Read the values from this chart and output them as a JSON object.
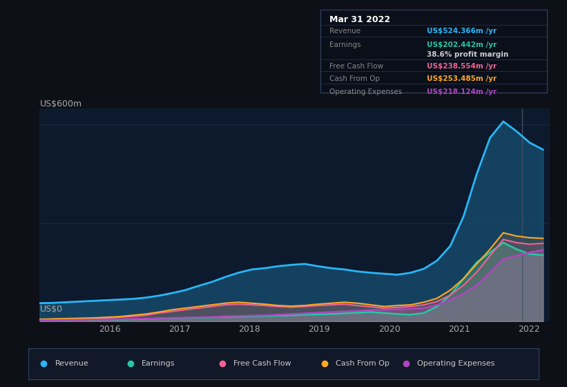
{
  "background_color": "#0d1117",
  "chart_bg": "#0d1a2e",
  "ylabel_top": "US$600m",
  "ylabel_bottom": "US$0",
  "x_ticks": [
    2016,
    2017,
    2018,
    2019,
    2020,
    2021,
    2022
  ],
  "ylim": [
    0,
    650
  ],
  "colors": {
    "revenue": "#29b6f6",
    "earnings": "#26c6a6",
    "free_cash_flow": "#f06292",
    "cash_from_op": "#ffa726",
    "operating_expenses": "#ab47bc"
  },
  "tooltip": {
    "date": "Mar 31 2022",
    "revenue": "US$524.366m /yr",
    "earnings": "US$202.442m /yr",
    "profit_margin": "38.6%",
    "free_cash_flow": "US$238.554m /yr",
    "cash_from_op": "US$253.485m /yr",
    "operating_expenses": "US$218.124m /yr"
  },
  "legend": [
    {
      "label": "Revenue",
      "color": "#29b6f6"
    },
    {
      "label": "Earnings",
      "color": "#26c6a6"
    },
    {
      "label": "Free Cash Flow",
      "color": "#f06292"
    },
    {
      "label": "Cash From Op",
      "color": "#ffa726"
    },
    {
      "label": "Operating Expenses",
      "color": "#ab47bc"
    }
  ],
  "revenue": [
    55,
    56,
    58,
    60,
    62,
    64,
    66,
    68,
    72,
    78,
    86,
    95,
    108,
    120,
    135,
    148,
    158,
    162,
    168,
    172,
    175,
    168,
    162,
    158,
    152,
    148,
    145,
    142,
    148,
    160,
    185,
    230,
    320,
    450,
    560,
    610,
    580,
    545,
    524
  ],
  "earnings": [
    3,
    3,
    3,
    4,
    4,
    5,
    5,
    6,
    7,
    8,
    9,
    10,
    11,
    12,
    13,
    14,
    15,
    16,
    17,
    18,
    20,
    21,
    22,
    24,
    26,
    28,
    25,
    22,
    20,
    25,
    45,
    80,
    130,
    180,
    210,
    240,
    220,
    205,
    202
  ],
  "free_cash_flow": [
    5,
    6,
    7,
    8,
    9,
    10,
    12,
    15,
    18,
    25,
    30,
    35,
    40,
    45,
    50,
    52,
    50,
    48,
    45,
    43,
    45,
    48,
    50,
    52,
    48,
    44,
    40,
    42,
    45,
    50,
    60,
    80,
    110,
    150,
    200,
    250,
    240,
    235,
    238
  ],
  "cash_from_op": [
    6,
    7,
    8,
    9,
    10,
    12,
    14,
    18,
    22,
    28,
    35,
    40,
    45,
    50,
    55,
    58,
    55,
    52,
    48,
    46,
    48,
    52,
    55,
    58,
    55,
    50,
    45,
    48,
    50,
    58,
    70,
    95,
    130,
    175,
    220,
    270,
    260,
    255,
    253
  ],
  "operating_expenses": [
    3,
    3,
    4,
    4,
    5,
    5,
    6,
    7,
    8,
    9,
    10,
    11,
    12,
    13,
    15,
    16,
    17,
    18,
    20,
    22,
    24,
    26,
    28,
    30,
    32,
    34,
    35,
    36,
    38,
    40,
    50,
    65,
    85,
    110,
    150,
    190,
    200,
    210,
    218
  ]
}
